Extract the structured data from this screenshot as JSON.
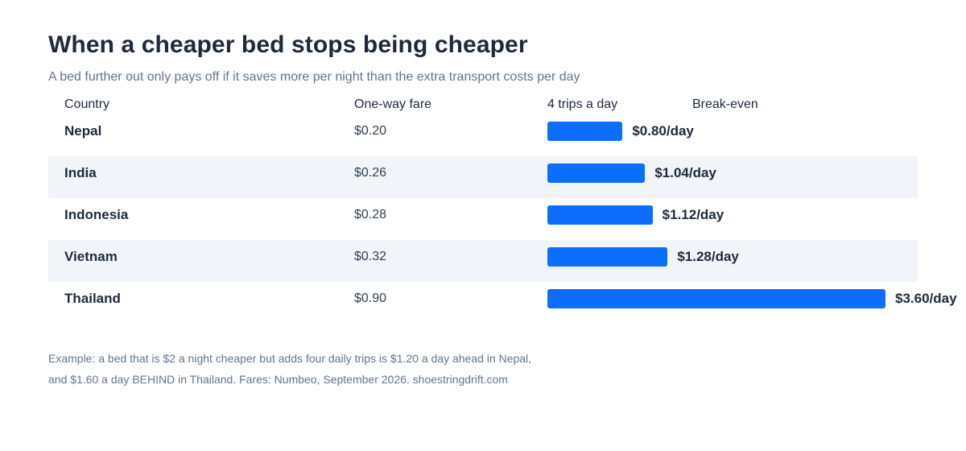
{
  "title": "When a cheaper bed stops being cheaper",
  "subtitle": "A bed further out only pays off if it saves more per night than the extra transport costs per day",
  "columns": {
    "country": "Country",
    "fare": "One-way fare",
    "trips": "4 trips a day",
    "breakeven": "Break-even"
  },
  "chart_data": {
    "type": "bar",
    "title": "When a cheaper bed stops being cheaper",
    "orientation": "horizontal",
    "categories": [
      "Nepal",
      "India",
      "Indonesia",
      "Vietnam",
      "Thailand"
    ],
    "fares": [
      "$0.20",
      "$0.26",
      "$0.28",
      "$0.32",
      "$0.90"
    ],
    "values": [
      0.8,
      1.04,
      1.12,
      1.28,
      3.6
    ],
    "value_labels": [
      "$0.80/day",
      "$1.04/day",
      "$1.12/day",
      "$1.28/day",
      "$3.60/day"
    ],
    "xlim": [
      0,
      3.6
    ],
    "bar_color": "#0d6efd",
    "row_shading": "alternating",
    "grid": false,
    "legend": "none"
  },
  "footnote": {
    "line1": "Example: a bed that is $2 a night cheaper but adds four daily trips is $1.20 a day ahead in Nepal,",
    "line2": "and $1.60 a day BEHIND in Thailand. Fares: Numbeo, September 2026. shoestringdrift.com"
  }
}
